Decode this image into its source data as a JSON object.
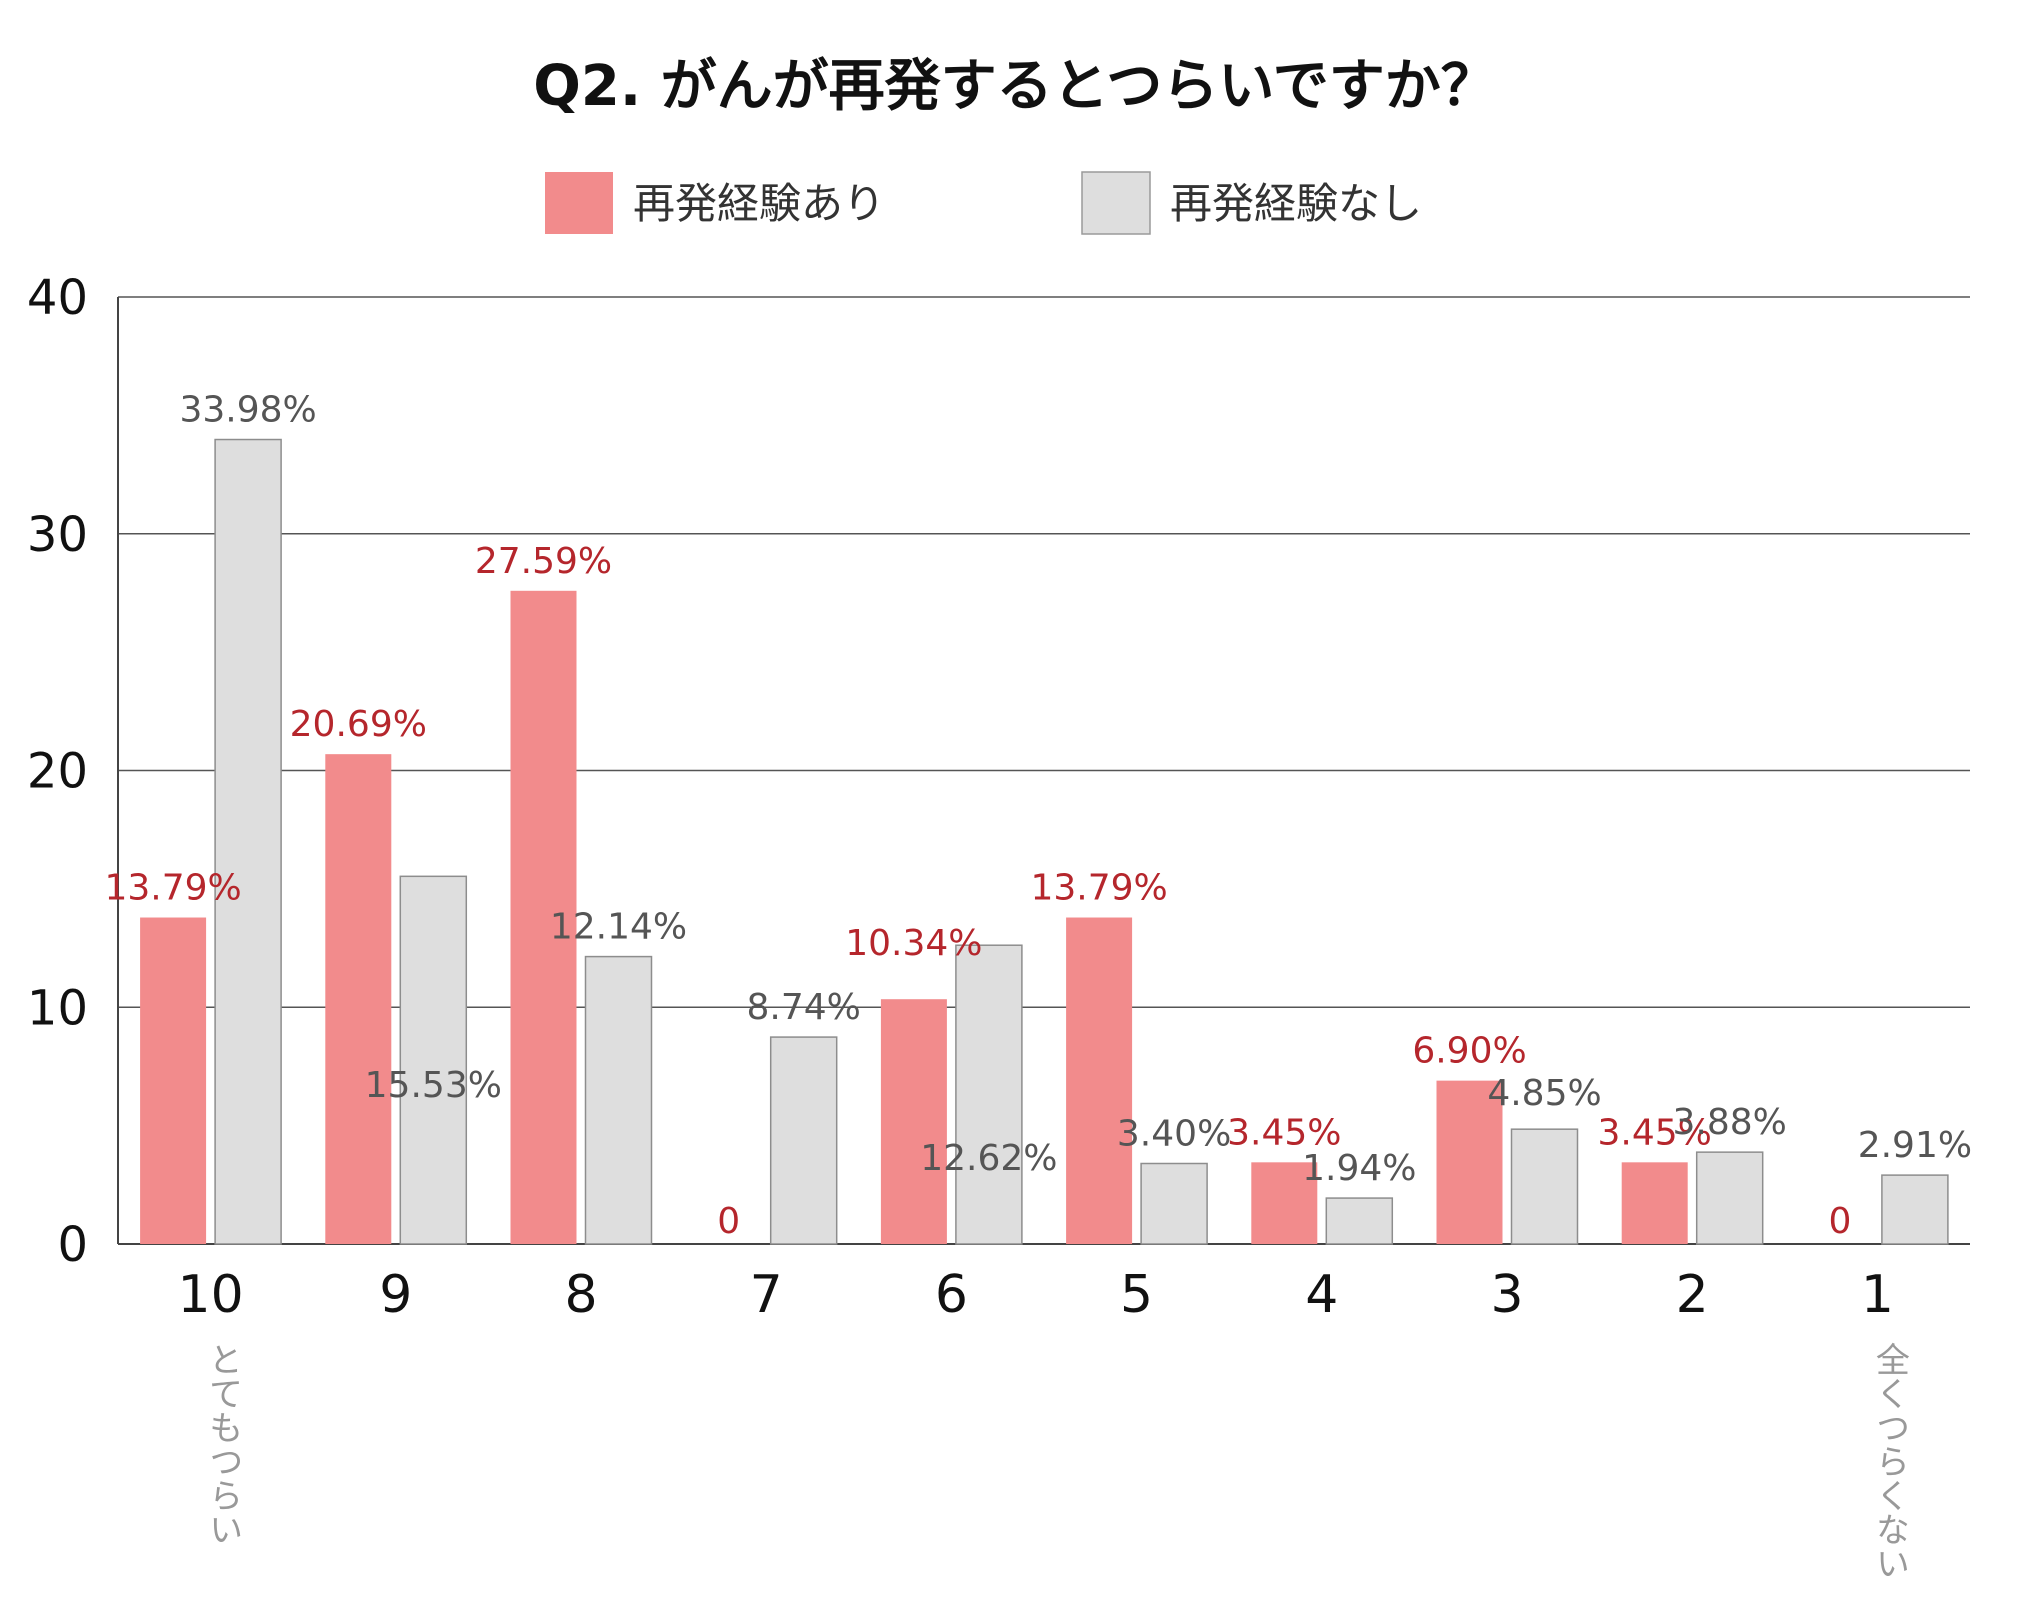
{
  "chart_data": {
    "type": "bar",
    "title": "Q2. がんが再発するとつらいですか？",
    "categories": [
      "10",
      "9",
      "8",
      "7",
      "6",
      "5",
      "4",
      "3",
      "2",
      "1"
    ],
    "category_notes": [
      {
        "category": "10",
        "text": "とてもつらい"
      },
      {
        "category": "1",
        "text": "全くつらくない"
      }
    ],
    "series": [
      {
        "name": "再発経験あり",
        "color": "#f28b8c",
        "label_color": "#b5262c",
        "values": [
          13.79,
          20.69,
          27.59,
          0,
          10.34,
          13.79,
          3.45,
          6.9,
          3.45,
          0
        ],
        "labels": [
          "13.79%",
          "20.69%",
          "27.59%",
          "0",
          "10.34%",
          "13.79%",
          "3.45%",
          "6.90%",
          "3.45%",
          "0"
        ]
      },
      {
        "name": "再発経験なし",
        "color": "#dedede",
        "label_color": "#555555",
        "values": [
          33.98,
          15.53,
          12.14,
          8.74,
          12.62,
          3.4,
          1.94,
          4.85,
          3.88,
          2.91
        ],
        "labels": [
          "33.98%",
          "15.53%",
          "12.14%",
          "8.74%",
          "12.62%",
          "3.40%",
          "1.94%",
          "4.85%",
          "3.88%",
          "2.91%"
        ]
      }
    ],
    "xlabel": "",
    "ylabel": "",
    "ylim": [
      0,
      40
    ],
    "yticks": [
      "0",
      "10",
      "20",
      "30",
      "40"
    ],
    "grid": true,
    "legend_position": "top"
  }
}
